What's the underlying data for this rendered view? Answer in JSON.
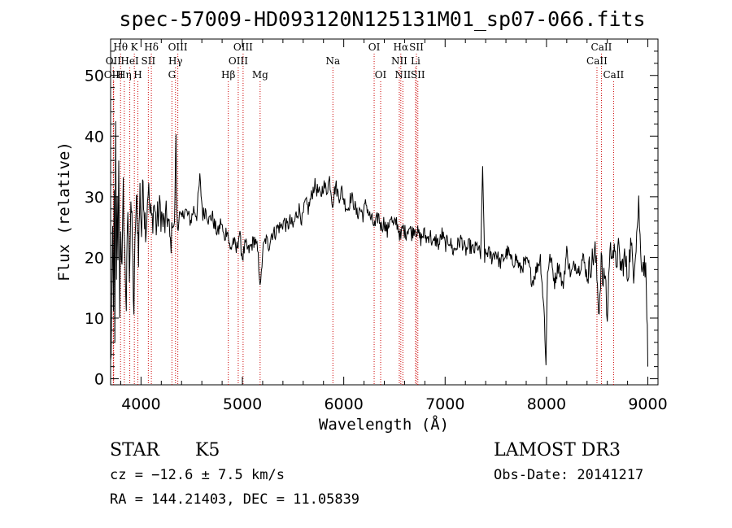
{
  "chart_data": {
    "type": "line",
    "title": "spec-57009-HD093120N125131M01_sp07-066.fits",
    "xlabel": "Wavelength (Å)",
    "ylabel": "Flux (relative)",
    "xlim": [
      3700,
      9100
    ],
    "ylim": [
      -1,
      56
    ],
    "xticks": [
      4000,
      5000,
      6000,
      7000,
      8000,
      9000
    ],
    "yticks": [
      0,
      10,
      20,
      30,
      40,
      50
    ],
    "series": [
      {
        "name": "flux",
        "anchors": [
          [
            3700,
            2
          ],
          [
            3705,
            5
          ],
          [
            3712,
            14
          ],
          [
            3720,
            22
          ],
          [
            3728,
            10
          ],
          [
            3735,
            30
          ],
          [
            3742,
            8
          ],
          [
            3750,
            40
          ],
          [
            3758,
            15
          ],
          [
            3765,
            28
          ],
          [
            3772,
            18
          ],
          [
            3780,
            37
          ],
          [
            3790,
            12
          ],
          [
            3800,
            26
          ],
          [
            3812,
            17
          ],
          [
            3825,
            31
          ],
          [
            3840,
            20
          ],
          [
            3855,
            12
          ],
          [
            3870,
            28
          ],
          [
            3885,
            18
          ],
          [
            3900,
            30
          ],
          [
            3915,
            22
          ],
          [
            3930,
            11
          ],
          [
            3945,
            26
          ],
          [
            3960,
            29
          ],
          [
            3975,
            21
          ],
          [
            3990,
            31
          ],
          [
            4005,
            24
          ],
          [
            4020,
            33
          ],
          [
            4035,
            27
          ],
          [
            4050,
            25
          ],
          [
            4070,
            32
          ],
          [
            4090,
            27
          ],
          [
            4110,
            26
          ],
          [
            4130,
            29
          ],
          [
            4150,
            25
          ],
          [
            4170,
            27
          ],
          [
            4190,
            28
          ],
          [
            4210,
            26
          ],
          [
            4230,
            25
          ],
          [
            4260,
            27
          ],
          [
            4290,
            22
          ],
          [
            4310,
            26
          ],
          [
            4330,
            25
          ],
          [
            4345,
            41
          ],
          [
            4350,
            30
          ],
          [
            4360,
            25
          ],
          [
            4380,
            27
          ],
          [
            4400,
            26
          ],
          [
            4430,
            28
          ],
          [
            4460,
            27
          ],
          [
            4490,
            26
          ],
          [
            4520,
            28
          ],
          [
            4550,
            27
          ],
          [
            4580,
            33
          ],
          [
            4610,
            27
          ],
          [
            4640,
            28
          ],
          [
            4670,
            26
          ],
          [
            4700,
            27
          ],
          [
            4730,
            25
          ],
          [
            4760,
            24
          ],
          [
            4790,
            26
          ],
          [
            4820,
            23
          ],
          [
            4850,
            25
          ],
          [
            4880,
            21
          ],
          [
            4910,
            23
          ],
          [
            4940,
            21
          ],
          [
            4970,
            24
          ],
          [
            5000,
            20
          ],
          [
            5030,
            22
          ],
          [
            5060,
            21
          ],
          [
            5090,
            22
          ],
          [
            5120,
            23
          ],
          [
            5150,
            21
          ],
          [
            5180,
            15
          ],
          [
            5200,
            21
          ],
          [
            5230,
            23
          ],
          [
            5260,
            22
          ],
          [
            5290,
            24
          ],
          [
            5320,
            24
          ],
          [
            5350,
            25
          ],
          [
            5380,
            25
          ],
          [
            5410,
            26
          ],
          [
            5440,
            25
          ],
          [
            5470,
            26
          ],
          [
            5500,
            25
          ],
          [
            5530,
            27
          ],
          [
            5560,
            28
          ],
          [
            5590,
            26
          ],
          [
            5620,
            29
          ],
          [
            5650,
            28
          ],
          [
            5680,
            30
          ],
          [
            5710,
            32
          ],
          [
            5740,
            31
          ],
          [
            5770,
            30
          ],
          [
            5800,
            32
          ],
          [
            5830,
            31
          ],
          [
            5860,
            33
          ],
          [
            5890,
            29
          ],
          [
            5920,
            32
          ],
          [
            5950,
            30
          ],
          [
            5980,
            31
          ],
          [
            6010,
            29
          ],
          [
            6040,
            28
          ],
          [
            6070,
            30
          ],
          [
            6100,
            29
          ],
          [
            6130,
            27
          ],
          [
            6160,
            28
          ],
          [
            6190,
            27
          ],
          [
            6220,
            29
          ],
          [
            6250,
            27
          ],
          [
            6280,
            26
          ],
          [
            6310,
            25
          ],
          [
            6340,
            27
          ],
          [
            6370,
            25
          ],
          [
            6400,
            26
          ],
          [
            6430,
            24
          ],
          [
            6460,
            27
          ],
          [
            6490,
            25
          ],
          [
            6520,
            26
          ],
          [
            6550,
            24
          ],
          [
            6563,
            23
          ],
          [
            6580,
            25
          ],
          [
            6610,
            24
          ],
          [
            6640,
            25
          ],
          [
            6670,
            24
          ],
          [
            6700,
            25
          ],
          [
            6730,
            24
          ],
          [
            6760,
            23
          ],
          [
            6790,
            24
          ],
          [
            6820,
            23
          ],
          [
            6850,
            24
          ],
          [
            6880,
            22
          ],
          [
            6910,
            23
          ],
          [
            6940,
            22
          ],
          [
            6970,
            24
          ],
          [
            7000,
            22
          ],
          [
            7040,
            23
          ],
          [
            7080,
            21
          ],
          [
            7120,
            22
          ],
          [
            7160,
            23
          ],
          [
            7200,
            21
          ],
          [
            7240,
            22
          ],
          [
            7280,
            21
          ],
          [
            7320,
            22
          ],
          [
            7350,
            20
          ],
          [
            7370,
            34
          ],
          [
            7390,
            20
          ],
          [
            7420,
            21
          ],
          [
            7460,
            20
          ],
          [
            7500,
            21
          ],
          [
            7540,
            19
          ],
          [
            7580,
            20
          ],
          [
            7620,
            21
          ],
          [
            7660,
            19
          ],
          [
            7700,
            20
          ],
          [
            7740,
            18
          ],
          [
            7780,
            19
          ],
          [
            7820,
            19
          ],
          [
            7860,
            16
          ],
          [
            7900,
            18
          ],
          [
            7940,
            20
          ],
          [
            7980,
            10
          ],
          [
            7995,
            2
          ],
          [
            8010,
            18
          ],
          [
            8040,
            20
          ],
          [
            8080,
            16
          ],
          [
            8120,
            19
          ],
          [
            8160,
            15
          ],
          [
            8200,
            21
          ],
          [
            8240,
            17
          ],
          [
            8280,
            19
          ],
          [
            8320,
            18
          ],
          [
            8360,
            20
          ],
          [
            8400,
            17
          ],
          [
            8440,
            19
          ],
          [
            8480,
            21
          ],
          [
            8520,
            11
          ],
          [
            8540,
            20
          ],
          [
            8560,
            15
          ],
          [
            8580,
            18
          ],
          [
            8600,
            9
          ],
          [
            8620,
            20
          ],
          [
            8650,
            22
          ],
          [
            8680,
            19
          ],
          [
            8710,
            21
          ],
          [
            8740,
            18
          ],
          [
            8770,
            20
          ],
          [
            8800,
            17
          ],
          [
            8830,
            22
          ],
          [
            8860,
            18
          ],
          [
            8890,
            24
          ],
          [
            8910,
            29
          ],
          [
            8930,
            20
          ],
          [
            8960,
            19
          ],
          [
            8985,
            17
          ],
          [
            9000,
            2
          ]
        ]
      }
    ],
    "line_markers": [
      {
        "name": "Hθ",
        "wavelength": 3798,
        "label_row": 1
      },
      {
        "name": "OII",
        "wavelength": 3727,
        "label_row": 2
      },
      {
        "name": "OIII",
        "wavelength": 3730,
        "label_row": 3
      },
      {
        "name": "Hη",
        "wavelength": 3835,
        "label_row": 3
      },
      {
        "name": "K",
        "wavelength": 3934,
        "label_row": 1
      },
      {
        "name": "HeI",
        "wavelength": 3889,
        "label_row": 2
      },
      {
        "name": "H",
        "wavelength": 3969,
        "label_row": 3
      },
      {
        "name": "SII",
        "wavelength": 4072,
        "label_row": 2
      },
      {
        "name": "Hδ",
        "wavelength": 4102,
        "label_row": 1
      },
      {
        "name": "OIII",
        "wavelength": 4363,
        "label_row": 1
      },
      {
        "name": "Hγ",
        "wavelength": 4340,
        "label_row": 2
      },
      {
        "name": "G",
        "wavelength": 4305,
        "label_row": 3
      },
      {
        "name": "OIII",
        "wavelength": 5007,
        "label_row": 1
      },
      {
        "name": "OIII",
        "wavelength": 4959,
        "label_row": 2
      },
      {
        "name": "Hβ",
        "wavelength": 4861,
        "label_row": 3
      },
      {
        "name": "Mg",
        "wavelength": 5175,
        "label_row": 3
      },
      {
        "name": "Na",
        "wavelength": 5893,
        "label_row": 2
      },
      {
        "name": "OI",
        "wavelength": 6300,
        "label_row": 1
      },
      {
        "name": "OI",
        "wavelength": 6364,
        "label_row": 3
      },
      {
        "name": "Hα",
        "wavelength": 6563,
        "label_row": 1
      },
      {
        "name": "SII",
        "wavelength": 6717,
        "label_row": 1
      },
      {
        "name": "NII",
        "wavelength": 6548,
        "label_row": 2
      },
      {
        "name": "Li",
        "wavelength": 6708,
        "label_row": 2
      },
      {
        "name": "NII",
        "wavelength": 6583,
        "label_row": 3
      },
      {
        "name": "SII",
        "wavelength": 6731,
        "label_row": 3
      },
      {
        "name": "CaII",
        "wavelength": 8542,
        "label_row": 1
      },
      {
        "name": "CaII",
        "wavelength": 8498,
        "label_row": 2
      },
      {
        "name": "CaII",
        "wavelength": 8662,
        "label_row": 3
      }
    ]
  },
  "info": {
    "object_type": "STAR",
    "subclass": "K5",
    "survey": "LAMOST DR3",
    "cz": "cz = −12.6 ± 7.5 km/s",
    "obs_date": "Obs-Date: 20141217",
    "coords": "RA = 144.21403, DEC =  11.05839"
  },
  "colors": {
    "spectrum": "#000000",
    "marker_line": "#cc0000",
    "background": "#ffffff"
  }
}
